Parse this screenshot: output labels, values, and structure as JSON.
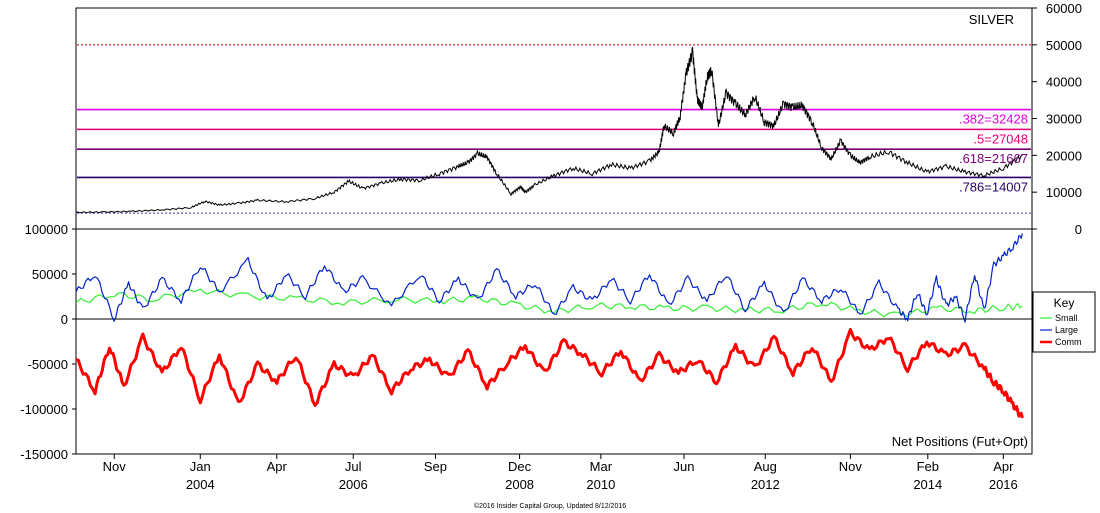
{
  "chart_data": [
    {
      "type": "line",
      "title": "SILVER",
      "ylim": [
        0,
        60000
      ],
      "y_ticks": [
        "60000",
        "50000",
        "40000",
        "30000",
        "20000",
        "10000",
        "0"
      ],
      "y_tick_values": [
        60000,
        50000,
        40000,
        30000,
        20000,
        10000,
        0
      ],
      "x_ticks": [
        {
          "month": "Nov",
          "year": ""
        },
        {
          "month": "Jan",
          "year": "2004"
        },
        {
          "month": "Apr",
          "year": ""
        },
        {
          "month": "Jul",
          "year": "2006"
        },
        {
          "month": "Sep",
          "year": ""
        },
        {
          "month": "Dec",
          "year": "2008"
        },
        {
          "month": "Mar",
          "year": "2010"
        },
        {
          "month": "Jun",
          "year": ""
        },
        {
          "month": "Aug",
          "year": "2012"
        },
        {
          "month": "Nov",
          "year": ""
        },
        {
          "month": "Feb",
          "year": "2014"
        },
        {
          "month": "Apr",
          "year": "2016"
        }
      ],
      "x_tick_positions": [
        0.04,
        0.13,
        0.21,
        0.29,
        0.376,
        0.464,
        0.549,
        0.636,
        0.721,
        0.81,
        0.891,
        0.97
      ],
      "series": [
        {
          "name": "",
          "color": "#000000",
          "x": [
            0,
            0.03,
            0.06,
            0.09,
            0.12,
            0.135,
            0.15,
            0.17,
            0.19,
            0.22,
            0.25,
            0.27,
            0.285,
            0.3,
            0.32,
            0.34,
            0.36,
            0.38,
            0.4,
            0.41,
            0.42,
            0.43,
            0.44,
            0.455,
            0.465,
            0.47,
            0.48,
            0.5,
            0.52,
            0.54,
            0.56,
            0.58,
            0.6,
            0.61,
            0.615,
            0.625,
            0.632,
            0.638,
            0.645,
            0.65,
            0.655,
            0.66,
            0.665,
            0.672,
            0.68,
            0.69,
            0.7,
            0.71,
            0.72,
            0.73,
            0.74,
            0.75,
            0.76,
            0.77,
            0.78,
            0.79,
            0.8,
            0.81,
            0.82,
            0.83,
            0.85,
            0.87,
            0.89,
            0.91,
            0.93,
            0.95,
            0.97,
            0.99
          ],
          "values": [
            4500,
            4600,
            4800,
            5200,
            5800,
            7500,
            6500,
            7000,
            7800,
            7400,
            8300,
            10000,
            13000,
            11000,
            12500,
            13500,
            13200,
            15000,
            17000,
            18000,
            20500,
            19500,
            15000,
            9500,
            11500,
            10000,
            12000,
            14500,
            16500,
            15000,
            17500,
            16500,
            18500,
            21000,
            28000,
            26000,
            30500,
            42000,
            48000,
            35000,
            33000,
            41000,
            43000,
            28000,
            37000,
            34000,
            31000,
            36000,
            29000,
            28000,
            34000,
            33000,
            33500,
            29000,
            22000,
            19000,
            24000,
            20000,
            18000,
            19500,
            21000,
            18000,
            15500,
            17000,
            15500,
            14500,
            16500,
            20000
          ]
        }
      ],
      "reference_lines": [
        {
          "value": 50000,
          "label": "",
          "color": "#c00000",
          "style": "dotted"
        },
        {
          "value": 32428,
          "label": ".382=32428",
          "color": "#e000e0",
          "style": "solid"
        },
        {
          "value": 27048,
          "label": ".5=27048",
          "color": "#e0007a",
          "style": "solid"
        },
        {
          "value": 21667,
          "label": ".618=21667",
          "color": "#7a007a",
          "style": "solid"
        },
        {
          "value": 14007,
          "label": ".786=14007",
          "color": "#2a006a",
          "style": "solid"
        },
        {
          "value": 4300,
          "label": "",
          "color": "#3333cc",
          "style": "dotted"
        }
      ]
    },
    {
      "type": "line",
      "title": "Net Positions (Fut+Opt)",
      "ylim": [
        -150000,
        100000
      ],
      "y_ticks": [
        "100000",
        "50000",
        "0",
        "-50000",
        "-100000",
        "-150000"
      ],
      "y_tick_values": [
        100000,
        50000,
        0,
        -50000,
        -100000,
        -150000
      ],
      "legend_title": "Key",
      "legend_position": "right",
      "series": [
        {
          "name": "Small",
          "color": "#33ee33",
          "x": [
            0,
            0.04,
            0.08,
            0.13,
            0.18,
            0.23,
            0.28,
            0.33,
            0.38,
            0.42,
            0.46,
            0.5,
            0.54,
            0.58,
            0.62,
            0.66,
            0.7,
            0.74,
            0.78,
            0.82,
            0.86,
            0.9,
            0.94,
            0.97,
            0.99
          ],
          "values": [
            18000,
            28000,
            22000,
            32000,
            25000,
            23000,
            18000,
            22000,
            20000,
            23000,
            16000,
            8000,
            15000,
            14000,
            12000,
            12000,
            10000,
            10000,
            18000,
            9000,
            4000,
            12000,
            9000,
            13000,
            14000
          ]
        },
        {
          "name": "Large",
          "color": "#0022cc",
          "x": [
            0,
            0.02,
            0.04,
            0.055,
            0.07,
            0.09,
            0.11,
            0.13,
            0.15,
            0.18,
            0.2,
            0.22,
            0.24,
            0.26,
            0.28,
            0.3,
            0.33,
            0.36,
            0.38,
            0.4,
            0.42,
            0.44,
            0.46,
            0.48,
            0.5,
            0.52,
            0.54,
            0.56,
            0.58,
            0.6,
            0.62,
            0.64,
            0.66,
            0.68,
            0.7,
            0.72,
            0.74,
            0.76,
            0.78,
            0.8,
            0.82,
            0.84,
            0.86,
            0.87,
            0.88,
            0.89,
            0.9,
            0.91,
            0.92,
            0.93,
            0.94,
            0.95,
            0.96,
            0.97,
            0.98,
            0.99
          ],
          "values": [
            30000,
            50000,
            0,
            40000,
            10000,
            45000,
            20000,
            60000,
            30000,
            65000,
            20000,
            50000,
            25000,
            60000,
            30000,
            45000,
            15000,
            50000,
            20000,
            45000,
            20000,
            55000,
            25000,
            40000,
            5000,
            35000,
            20000,
            45000,
            20000,
            50000,
            15000,
            45000,
            20000,
            50000,
            10000,
            40000,
            5000,
            45000,
            20000,
            35000,
            5000,
            40000,
            10000,
            0,
            30000,
            5000,
            45000,
            15000,
            25000,
            0,
            50000,
            10000,
            60000,
            70000,
            80000,
            95000
          ]
        },
        {
          "name": "Comm",
          "color": "#ff0000",
          "x": [
            0,
            0.02,
            0.035,
            0.05,
            0.07,
            0.09,
            0.11,
            0.13,
            0.15,
            0.17,
            0.19,
            0.21,
            0.23,
            0.25,
            0.27,
            0.29,
            0.31,
            0.33,
            0.35,
            0.37,
            0.39,
            0.41,
            0.43,
            0.45,
            0.47,
            0.49,
            0.51,
            0.53,
            0.55,
            0.57,
            0.59,
            0.61,
            0.63,
            0.65,
            0.67,
            0.69,
            0.71,
            0.73,
            0.75,
            0.77,
            0.79,
            0.81,
            0.83,
            0.85,
            0.87,
            0.89,
            0.91,
            0.93,
            0.95,
            0.96,
            0.97,
            0.98,
            0.99
          ],
          "values": [
            -45000,
            -80000,
            -30000,
            -75000,
            -20000,
            -60000,
            -30000,
            -90000,
            -40000,
            -95000,
            -50000,
            -70000,
            -40000,
            -95000,
            -50000,
            -65000,
            -40000,
            -80000,
            -55000,
            -45000,
            -65000,
            -35000,
            -75000,
            -50000,
            -30000,
            -60000,
            -25000,
            -40000,
            -60000,
            -35000,
            -70000,
            -40000,
            -60000,
            -45000,
            -70000,
            -30000,
            -55000,
            -20000,
            -60000,
            -30000,
            -70000,
            -15000,
            -35000,
            -20000,
            -55000,
            -25000,
            -40000,
            -30000,
            -55000,
            -70000,
            -80000,
            -95000,
            -110000
          ]
        }
      ]
    }
  ],
  "footer": {
    "credit": "©2016 Insider Capital Group, Updated 8/12/2016"
  }
}
